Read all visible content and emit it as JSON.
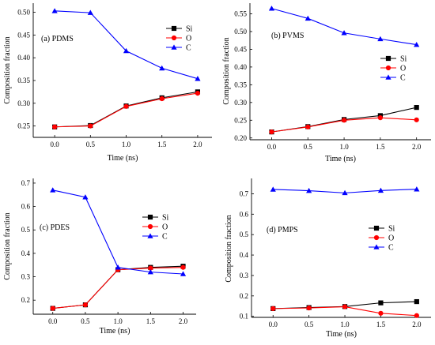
{
  "chart_data": [
    {
      "type": "line",
      "panel_label": "(a) PDMS",
      "xlabel": "Time (ns)",
      "ylabel": "Composition fraction",
      "x": [
        0.0,
        0.5,
        1.0,
        1.5,
        2.0
      ],
      "x_tick_labels": [
        "0.0",
        "0.5",
        "1.0",
        "1.5",
        "2.0"
      ],
      "xlim": [
        -0.3,
        2.2
      ],
      "ylim": [
        0.225,
        0.52
      ],
      "y_ticks": [
        0.25,
        0.3,
        0.35,
        0.4,
        0.45,
        0.5
      ],
      "y_tick_labels": [
        "0.25",
        "0.30",
        "0.35",
        "0.40",
        "0.45",
        "0.50"
      ],
      "legend_position": "top-right",
      "series": [
        {
          "name": "Si",
          "color": "#000000",
          "marker": "square",
          "values": [
            0.248,
            0.251,
            0.294,
            0.312,
            0.325
          ]
        },
        {
          "name": "O",
          "color": "#ff0000",
          "marker": "circle",
          "values": [
            0.248,
            0.25,
            0.293,
            0.31,
            0.322
          ]
        },
        {
          "name": "C",
          "color": "#0000ff",
          "marker": "triangle",
          "values": [
            0.503,
            0.499,
            0.415,
            0.377,
            0.354
          ]
        }
      ]
    },
    {
      "type": "line",
      "panel_label": "(b) PVMS",
      "xlabel": "Time (ns)",
      "ylabel": "Composition fraction",
      "x": [
        0.0,
        0.5,
        1.0,
        1.5,
        2.0
      ],
      "x_tick_labels": [
        "0.0",
        "0.5",
        "1.0",
        "1.5",
        "2.0"
      ],
      "xlim": [
        -0.3,
        2.2
      ],
      "ylim": [
        0.195,
        0.58
      ],
      "y_ticks": [
        0.2,
        0.25,
        0.3,
        0.35,
        0.4,
        0.45,
        0.5,
        0.55
      ],
      "y_tick_labels": [
        "0.20",
        "0.25",
        "0.30",
        "0.35",
        "0.40",
        "0.45",
        "0.50",
        "0.55"
      ],
      "legend_position": "middle-right",
      "series": [
        {
          "name": "Si",
          "color": "#000000",
          "marker": "square",
          "values": [
            0.217,
            0.232,
            0.252,
            0.263,
            0.286
          ]
        },
        {
          "name": "O",
          "color": "#ff0000",
          "marker": "circle",
          "values": [
            0.217,
            0.231,
            0.25,
            0.257,
            0.251
          ]
        },
        {
          "name": "C",
          "color": "#0000ff",
          "marker": "triangle",
          "values": [
            0.565,
            0.537,
            0.496,
            0.479,
            0.463
          ]
        }
      ]
    },
    {
      "type": "line",
      "panel_label": "(c) PDES",
      "xlabel": "Time (ns)",
      "ylabel": "Composition fraction",
      "x": [
        0.0,
        0.5,
        1.0,
        1.5,
        2.0
      ],
      "x_tick_labels": [
        "0.0",
        "0.5",
        "1.0",
        "1.5",
        "2.0"
      ],
      "xlim": [
        -0.3,
        2.2
      ],
      "ylim": [
        0.14,
        0.72
      ],
      "y_ticks": [
        0.2,
        0.3,
        0.4,
        0.5,
        0.6,
        0.7
      ],
      "y_tick_labels": [
        "0.2",
        "0.3",
        "0.4",
        "0.5",
        "0.6",
        "0.7"
      ],
      "legend_position": "middle-right",
      "series": [
        {
          "name": "Si",
          "color": "#000000",
          "marker": "square",
          "values": [
            0.165,
            0.18,
            0.33,
            0.34,
            0.345
          ]
        },
        {
          "name": "O",
          "color": "#ff0000",
          "marker": "circle",
          "values": [
            0.165,
            0.18,
            0.33,
            0.337,
            0.34
          ]
        },
        {
          "name": "C",
          "color": "#0000ff",
          "marker": "triangle",
          "values": [
            0.67,
            0.64,
            0.34,
            0.32,
            0.312
          ]
        }
      ]
    },
    {
      "type": "line",
      "panel_label": "(d) PMPS",
      "xlabel": "Time (ns)",
      "ylabel": "Composition fraction",
      "x": [
        0.0,
        0.5,
        1.0,
        1.5,
        2.0
      ],
      "x_tick_labels": [
        "0.0",
        "0.5",
        "1.0",
        "1.5",
        "2.0"
      ],
      "xlim": [
        -0.3,
        2.2
      ],
      "ylim": [
        0.095,
        0.775
      ],
      "y_ticks": [
        0.1,
        0.2,
        0.3,
        0.4,
        0.5,
        0.6,
        0.7
      ],
      "y_tick_labels": [
        "0.1",
        "0.2",
        "0.3",
        "0.4",
        "0.5",
        "0.6",
        "0.7"
      ],
      "legend_position": "middle-right",
      "series": [
        {
          "name": "Si",
          "color": "#000000",
          "marker": "square",
          "values": [
            0.138,
            0.143,
            0.148,
            0.166,
            0.172
          ]
        },
        {
          "name": "O",
          "color": "#ff0000",
          "marker": "circle",
          "values": [
            0.138,
            0.141,
            0.147,
            0.115,
            0.104
          ]
        },
        {
          "name": "C",
          "color": "#0000ff",
          "marker": "triangle",
          "values": [
            0.721,
            0.715,
            0.704,
            0.716,
            0.722
          ]
        }
      ]
    }
  ]
}
